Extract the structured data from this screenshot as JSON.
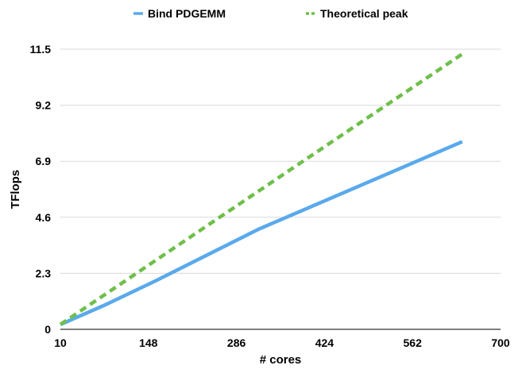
{
  "chart_data": {
    "type": "line",
    "xlabel": "# cores",
    "ylabel": "TFlops",
    "xlim": [
      10,
      700
    ],
    "ylim": [
      0,
      11.5
    ],
    "xticks": [
      10,
      148,
      286,
      424,
      562,
      700
    ],
    "yticks": [
      0,
      2.3,
      4.6,
      6.9,
      9.2,
      11.5
    ],
    "grid": true,
    "legend_position": "top-center",
    "series": [
      {
        "name": "Bind PDGEMM",
        "color": "#5aa9ec",
        "style": "solid",
        "x": [
          10,
          80,
          160,
          320,
          640
        ],
        "y": [
          0.2,
          1.0,
          2.0,
          4.1,
          7.7
        ]
      },
      {
        "name": "Theoretical peak",
        "color": "#6fbf4a",
        "style": "dashed",
        "x": [
          10,
          640
        ],
        "y": [
          0.2,
          11.3
        ]
      }
    ]
  }
}
